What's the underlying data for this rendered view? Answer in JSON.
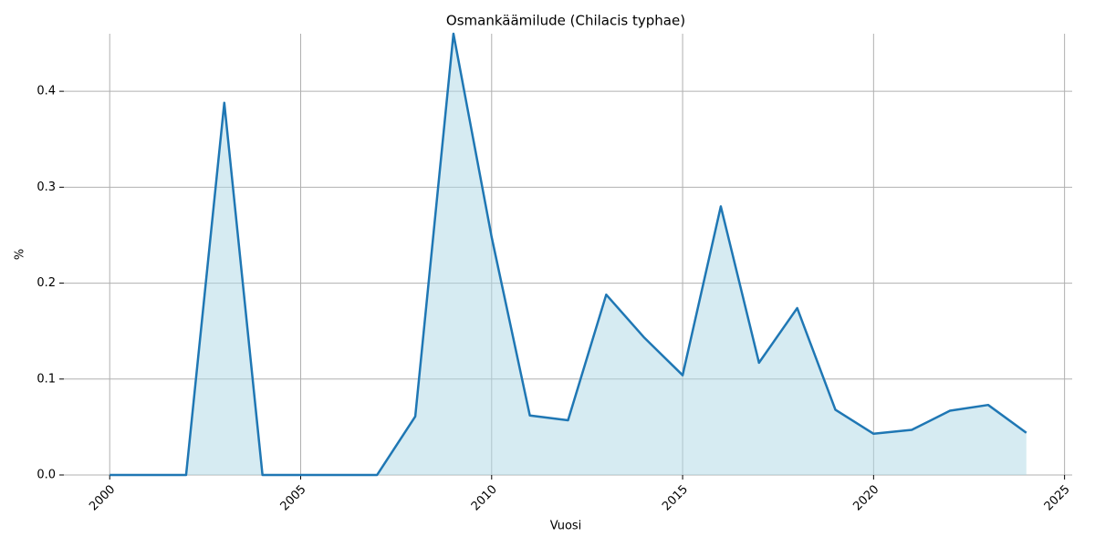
{
  "chart_data": {
    "type": "area",
    "title": "Osmankäämilude (Chilacis typhae)",
    "xlabel": "Vuosi",
    "ylabel": "%",
    "x": [
      2000,
      2001,
      2002,
      2003,
      2004,
      2005,
      2006,
      2007,
      2008,
      2009,
      2010,
      2011,
      2012,
      2013,
      2014,
      2015,
      2016,
      2017,
      2018,
      2019,
      2020,
      2021,
      2022,
      2023,
      2024
    ],
    "series": [
      {
        "name": "%",
        "color": "#1f77b4",
        "fill": "#add8e6",
        "values": [
          0,
          0,
          0,
          0.388,
          0,
          0,
          0,
          0,
          0.061,
          0.46,
          0.248,
          0.062,
          0.057,
          0.188,
          0.143,
          0.104,
          0.28,
          0.117,
          0.174,
          0.068,
          0.043,
          0.047,
          0.067,
          0.073,
          0.044
        ]
      }
    ],
    "xlim": [
      1998.8,
      2025.2
    ],
    "ylim": [
      0,
      0.46
    ],
    "xticks": [
      2000,
      2005,
      2010,
      2015,
      2020,
      2025
    ],
    "yticks": [
      {
        "value": 0,
        "label": "0.0"
      },
      0.1,
      0.2,
      0.3,
      0.4
    ],
    "grid": true
  }
}
